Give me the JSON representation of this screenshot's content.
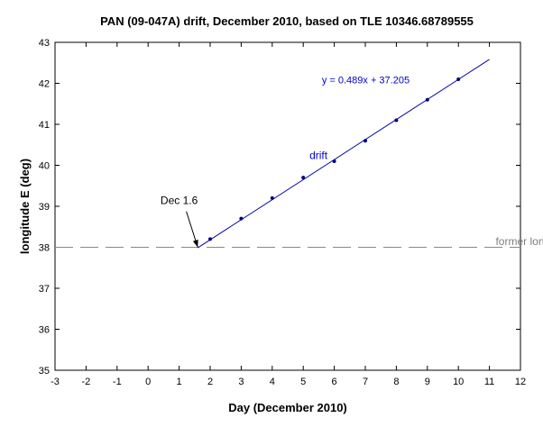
{
  "chart_data": {
    "type": "scatter",
    "title": "PAN (09-047A) drift, December 2010, based on TLE 10346.68789555",
    "xlabel": "Day (December 2010)",
    "ylabel": "longitude E (deg)",
    "xlim": [
      -3,
      12
    ],
    "ylim": [
      35,
      43
    ],
    "xticks": [
      "-3",
      "-2",
      "-1",
      "0",
      "1",
      "2",
      "3",
      "4",
      "5",
      "6",
      "7",
      "8",
      "9",
      "10",
      "11",
      "12"
    ],
    "yticks": [
      "35",
      "36",
      "37",
      "38",
      "39",
      "40",
      "41",
      "42",
      "43"
    ],
    "grid": false,
    "series": [
      {
        "name": "drift",
        "x": [
          2,
          3,
          4,
          5,
          6,
          7,
          8,
          9,
          10
        ],
        "y": [
          38.2,
          38.7,
          39.2,
          39.7,
          40.1,
          40.6,
          41.1,
          41.6,
          42.1
        ]
      }
    ],
    "fit": {
      "equation": "y = 0.489x + 37.205",
      "slope": 0.489,
      "intercept": 37.205,
      "x_start": 1.6,
      "x_end": 11
    },
    "reference_line": {
      "label": "former longitude",
      "y": 38
    },
    "annotations": {
      "callout_label": "Dec 1.6",
      "callout_point": [
        1.6,
        38
      ],
      "callout_text_at": [
        1.0,
        39.05
      ],
      "drift_label": "drift",
      "drift_label_at": [
        5.2,
        40.15
      ],
      "equation_at": [
        5.6,
        42.0
      ],
      "former_label_at": [
        11.2,
        38.05
      ]
    },
    "colors": {
      "fit_line": "#0000aa",
      "points": "#000080",
      "reference_line": "#888888",
      "equation_text": "#0000cc",
      "drift_text": "#0000cc",
      "former_text": "#808080"
    }
  }
}
